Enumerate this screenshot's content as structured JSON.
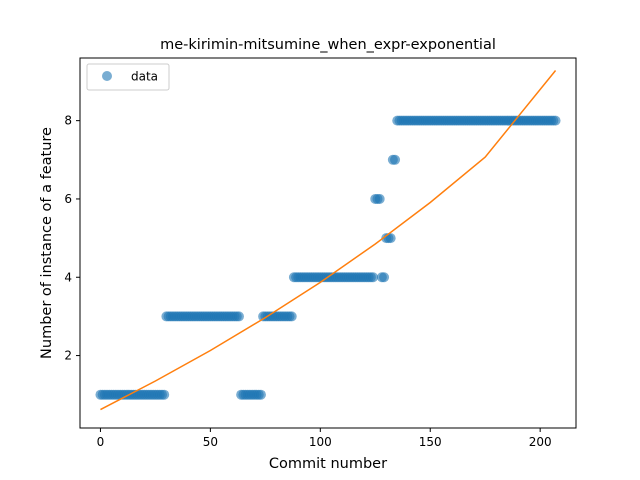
{
  "chart_data": {
    "type": "scatter",
    "title": "me-kirimin-mitsumine_when_expr-exponential",
    "xlabel": "Commit number",
    "ylabel": "Number of instance of a feature",
    "xlim": [
      -9.3,
      216.3
    ],
    "ylim": [
      0.15,
      9.6
    ],
    "xticks": [
      0,
      50,
      100,
      150,
      200
    ],
    "yticks": [
      2,
      4,
      6,
      8
    ],
    "legend": {
      "position": "top-left",
      "entries": [
        "data"
      ]
    },
    "grid": false,
    "colors": {
      "points": "#1f77b4",
      "fit": "#ff7f0e"
    },
    "series": [
      {
        "name": "data",
        "kind": "points",
        "segments": [
          {
            "x_start": 0,
            "x_end": 29,
            "y": 1
          },
          {
            "x_start": 30,
            "x_end": 63,
            "y": 3
          },
          {
            "x_start": 64,
            "x_end": 73,
            "y": 1
          },
          {
            "x_start": 74,
            "x_end": 87,
            "y": 3
          },
          {
            "x_start": 88,
            "x_end": 124,
            "y": 4
          },
          {
            "x_start": 125,
            "x_end": 127,
            "y": 6
          },
          {
            "x_start": 128,
            "x_end": 129,
            "y": 4
          },
          {
            "x_start": 130,
            "x_end": 132,
            "y": 5
          },
          {
            "x_start": 133,
            "x_end": 134,
            "y": 7
          },
          {
            "x_start": 135,
            "x_end": 207,
            "y": 8
          }
        ]
      },
      {
        "kind": "fit-line",
        "x": [
          0,
          25,
          50,
          75,
          100,
          125,
          150,
          175,
          207
        ],
        "y": [
          0.62,
          1.35,
          2.13,
          2.97,
          3.87,
          4.85,
          5.91,
          7.07,
          9.28
        ]
      }
    ]
  }
}
